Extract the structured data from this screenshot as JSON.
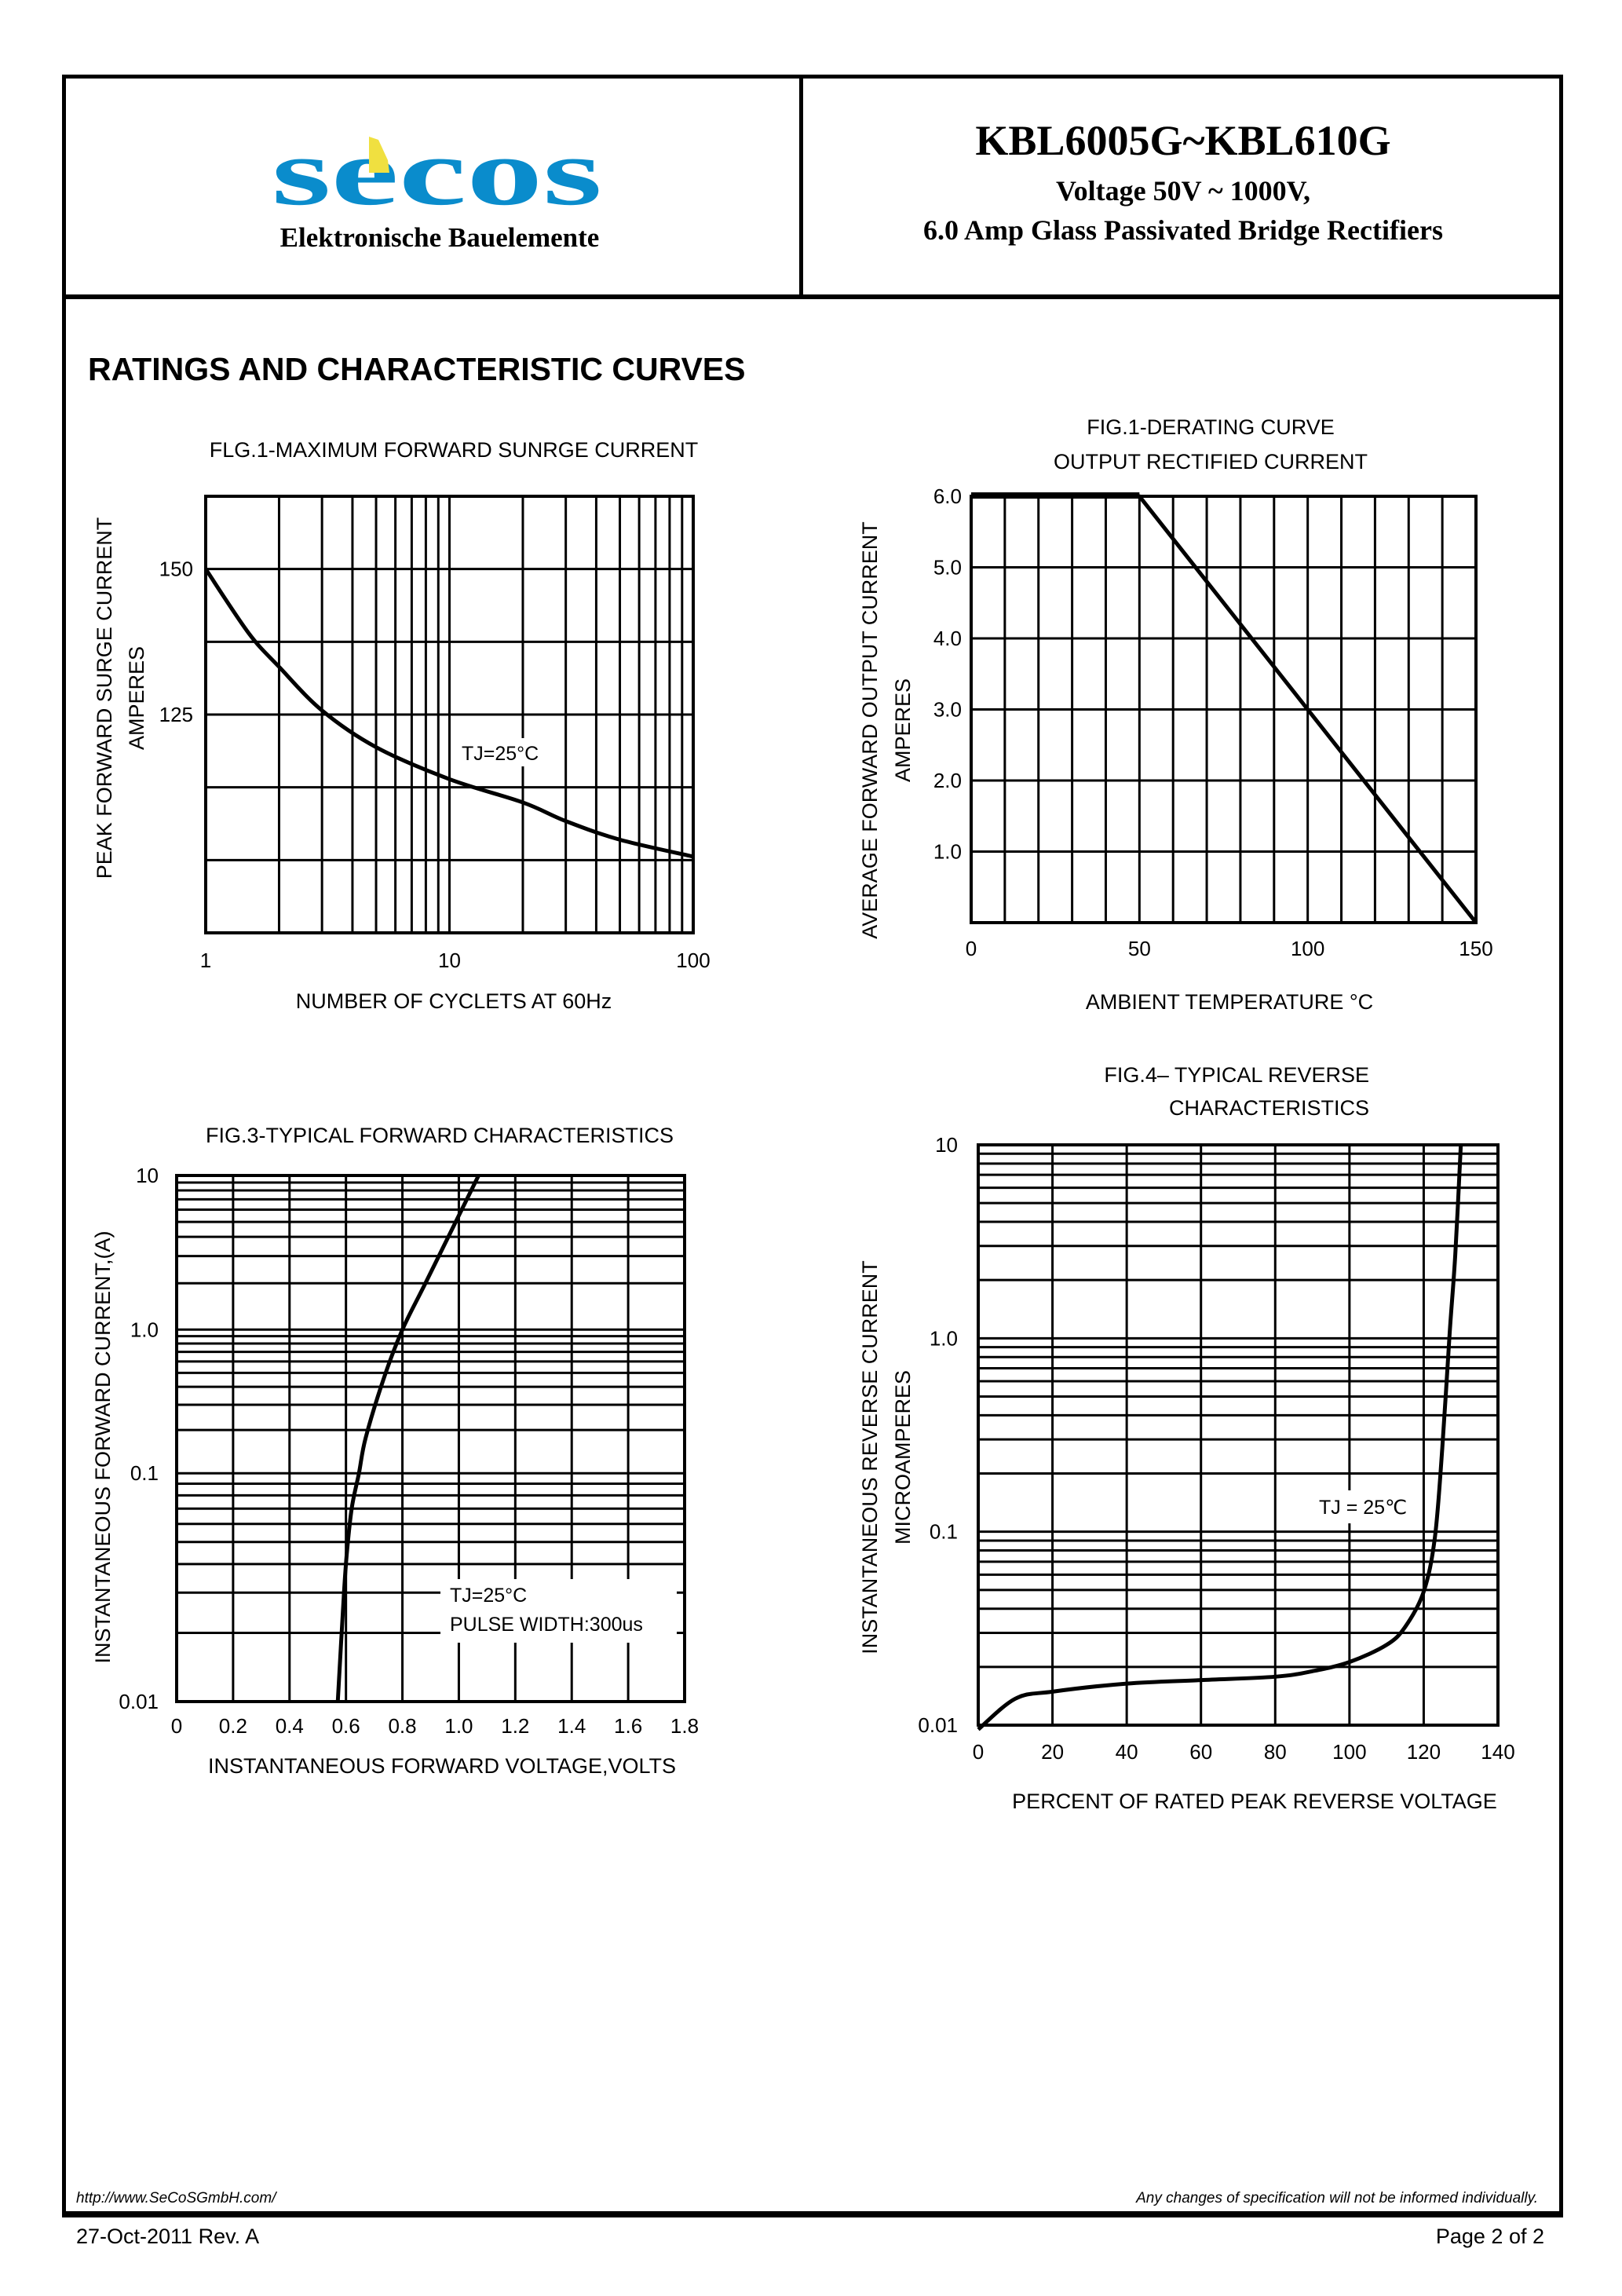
{
  "header": {
    "logo_text": "secos",
    "logo_colors": {
      "blue": "#0a8ccc",
      "yellow": "#f0e040"
    },
    "company_subtitle": "Elektronische Bauelemente",
    "part_number": "KBL6005G~KBL610G",
    "voltage": "Voltage 50V ~ 1000V,",
    "description": "6.0 Amp Glass Passivated Bridge Rectifiers"
  },
  "section_title": "RATINGS AND CHARACTERISTIC CURVES",
  "chart_data": [
    {
      "id": "fig1",
      "type": "line",
      "title": [
        "FLG.1-MAXIMUM FORWARD SUNRGE CURRENT"
      ],
      "xlabel": "NUMBER OF CYCLETS AT 60Hz",
      "ylabel": [
        "PEAK FORWARD SURGE CURRENT",
        "AMPERES"
      ],
      "xscale": "log",
      "yscale": "linear",
      "xlim": [
        1,
        100
      ],
      "ylim": [
        87.5,
        162.5
      ],
      "y_grid_step": 12.5,
      "x_ticks": [
        {
          "value": 1,
          "label": "1"
        },
        {
          "value": 10,
          "label": "10"
        },
        {
          "value": 100,
          "label": "100"
        }
      ],
      "y_ticks": [
        {
          "value": 150,
          "label": "150"
        },
        {
          "value": 125,
          "label": "125"
        }
      ],
      "annotations": [
        "TJ=25°C"
      ],
      "grid": true,
      "series": [
        {
          "x": [
            1,
            1.5,
            2,
            3,
            5,
            10,
            20,
            30,
            50,
            100
          ],
          "y": [
            150,
            139,
            133.2,
            125.7,
            119.4,
            113.9,
            109.9,
            106.7,
            103.5,
            100.6
          ]
        }
      ]
    },
    {
      "id": "fig2",
      "type": "line",
      "title": [
        "FIG.1-DERATING CURVE",
        "OUTPUT RECTIFIED CURRENT"
      ],
      "xlabel": "AMBIENT TEMPERATURE °C",
      "ylabel": [
        "AVERAGE FORWARD OUTPUT CURRENT",
        "AMPERES"
      ],
      "xscale": "linear",
      "yscale": "linear",
      "xlim": [
        0,
        150
      ],
      "ylim": [
        0,
        6
      ],
      "x_grid_step": 10,
      "y_grid_step": 1,
      "x_ticks": [
        {
          "value": 0,
          "label": "0"
        },
        {
          "value": 50,
          "label": "50"
        },
        {
          "value": 100,
          "label": "100"
        },
        {
          "value": 150,
          "label": "150"
        }
      ],
      "y_ticks": [
        {
          "value": 6,
          "label": "6.0"
        },
        {
          "value": 5,
          "label": "5.0"
        },
        {
          "value": 4,
          "label": "4.0"
        },
        {
          "value": 3,
          "label": "3.0"
        },
        {
          "value": 2,
          "label": "2.0"
        },
        {
          "value": 1,
          "label": "1.0"
        }
      ],
      "annotations": [],
      "grid": true,
      "series": [
        {
          "x": [
            0,
            50,
            150
          ],
          "y": [
            6,
            6,
            0
          ]
        }
      ]
    },
    {
      "id": "fig3",
      "type": "line",
      "title": [
        "FIG.3-TYPICAL FORWARD CHARACTERISTICS"
      ],
      "xlabel": "INSTANTANEOUS FORWARD VOLTAGE,VOLTS",
      "ylabel": [
        "INSTANTANEOUS FORWARD CURRENT,(A)"
      ],
      "xscale": "linear",
      "yscale": "log",
      "xlim": [
        0,
        1.8
      ],
      "ylim": [
        0.01,
        10
      ],
      "x_grid_step": 0.2,
      "x_ticks": [
        {
          "value": 0,
          "label": "0"
        },
        {
          "value": 0.2,
          "label": "0.2"
        },
        {
          "value": 0.4,
          "label": "0.4"
        },
        {
          "value": 0.6,
          "label": "0.6"
        },
        {
          "value": 0.8,
          "label": "0.8"
        },
        {
          "value": 1.0,
          "label": "1.0"
        },
        {
          "value": 1.2,
          "label": "1.2"
        },
        {
          "value": 1.4,
          "label": "1.4"
        },
        {
          "value": 1.6,
          "label": "1.6"
        },
        {
          "value": 1.8,
          "label": "1.8"
        }
      ],
      "y_ticks": [
        {
          "value": 10,
          "label": "10"
        },
        {
          "value": 1,
          "label": "1.0"
        },
        {
          "value": 0.1,
          "label": "0.1"
        },
        {
          "value": 0.01,
          "label": "0.01"
        }
      ],
      "annotations": [
        "TJ=25°C",
        "PULSE WIDTH:300us"
      ],
      "grid": true,
      "series": [
        {
          "x": [
            0.571,
            0.593,
            0.604,
            0.621,
            0.646,
            0.67,
            0.736,
            0.8,
            0.881,
            1.0,
            1.07
          ],
          "y": [
            0.01,
            0.03,
            0.046,
            0.071,
            0.1,
            0.177,
            0.47,
            1.0,
            1.99,
            5.5,
            10
          ]
        }
      ]
    },
    {
      "id": "fig4",
      "type": "line",
      "title": [
        "FIG.4– TYPICAL REVERSE",
        "CHARACTERISTICS"
      ],
      "xlabel": "PERCENT OF RATED PEAK REVERSE VOLTAGE",
      "ylabel": [
        "INSTANTANEOUS REVERSE CURRENT",
        "MICROAMPERES"
      ],
      "xscale": "linear",
      "yscale": "log",
      "xlim": [
        0,
        140
      ],
      "ylim": [
        0.01,
        10
      ],
      "x_grid_step": 20,
      "x_ticks": [
        {
          "value": 0,
          "label": "0"
        },
        {
          "value": 20,
          "label": "20"
        },
        {
          "value": 40,
          "label": "40"
        },
        {
          "value": 60,
          "label": "60"
        },
        {
          "value": 80,
          "label": "80"
        },
        {
          "value": 100,
          "label": "100"
        },
        {
          "value": 120,
          "label": "120"
        },
        {
          "value": 140,
          "label": "140"
        }
      ],
      "y_ticks": [
        {
          "value": 10,
          "label": "10"
        },
        {
          "value": 1,
          "label": "1.0"
        },
        {
          "value": 0.1,
          "label": "0.1"
        },
        {
          "value": 0.01,
          "label": "0.01"
        }
      ],
      "annotations": [
        "TJ = 25℃"
      ],
      "grid": true,
      "series": [
        {
          "x": [
            0,
            10,
            20,
            40,
            60,
            80,
            90,
            100,
            110,
            115,
            120,
            123,
            125,
            127,
            128.5,
            130
          ],
          "y": [
            0.0095,
            0.0137,
            0.0149,
            0.0164,
            0.0171,
            0.0178,
            0.019,
            0.0212,
            0.026,
            0.0322,
            0.049,
            0.093,
            0.27,
            1.07,
            2.7,
            10
          ]
        }
      ]
    }
  ],
  "footer": {
    "url": "http://www.SeCoSGmbH.com/",
    "note": "Any changes of specification will not be informed individually.",
    "date_rev": "27-Oct-2011 Rev. A",
    "page": "Page  2  of  2"
  }
}
